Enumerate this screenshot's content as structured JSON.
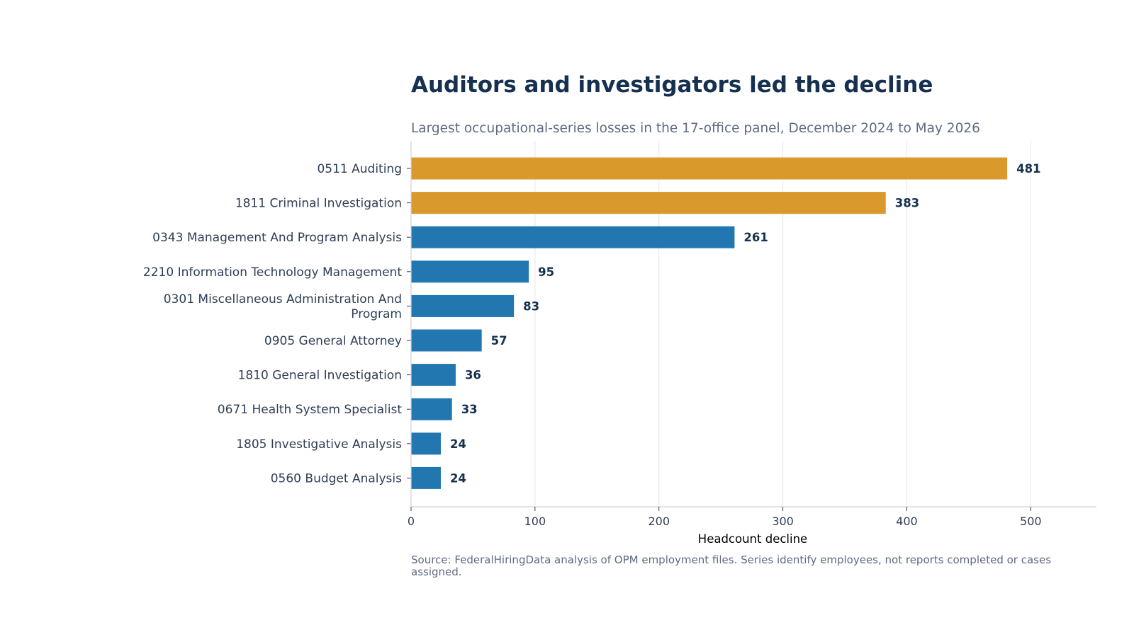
{
  "chart_data": {
    "type": "bar",
    "orientation": "horizontal",
    "title": "Auditors and investigators led the decline",
    "subtitle": "Largest occupational-series losses in the 17-office panel, December 2024 to May 2026",
    "xlabel": "Headcount decline",
    "ylabel": "",
    "xlim": [
      0,
      553
    ],
    "xticks": [
      0,
      100,
      200,
      300,
      400,
      500
    ],
    "grid": "vertical",
    "categories": [
      "0511 Auditing",
      "1811 Criminal Investigation",
      "0343 Management And Program Analysis",
      "2210 Information Technology Management",
      "0301 Miscellaneous Administration And Program",
      "0905 General Attorney",
      "1810 General Investigation",
      "0671 Health System Specialist",
      "1805 Investigative Analysis",
      "0560 Budget Analysis"
    ],
    "category_label_lines": [
      [
        "0511 Auditing"
      ],
      [
        "1811 Criminal Investigation"
      ],
      [
        "0343 Management And Program Analysis"
      ],
      [
        "2210 Information Technology Management"
      ],
      [
        "0301 Miscellaneous Administration And",
        "Program"
      ],
      [
        "0905 General Attorney"
      ],
      [
        "1810 General Investigation"
      ],
      [
        "0671 Health System Specialist"
      ],
      [
        "1805 Investigative Analysis"
      ],
      [
        "0560 Budget Analysis"
      ]
    ],
    "values": [
      481,
      383,
      261,
      95,
      83,
      57,
      36,
      33,
      24,
      24
    ],
    "value_labels": [
      "481",
      "383",
      "261",
      "95",
      "83",
      "57",
      "36",
      "33",
      "24",
      "24"
    ],
    "highlight": [
      true,
      true,
      false,
      false,
      false,
      false,
      false,
      false,
      false,
      false
    ],
    "colors": {
      "highlight": "#d99a2b",
      "default": "#2277b0"
    },
    "source": "Source: FederalHiringData analysis of OPM employment files. Series identify employees, not reports completed or cases assigned."
  }
}
